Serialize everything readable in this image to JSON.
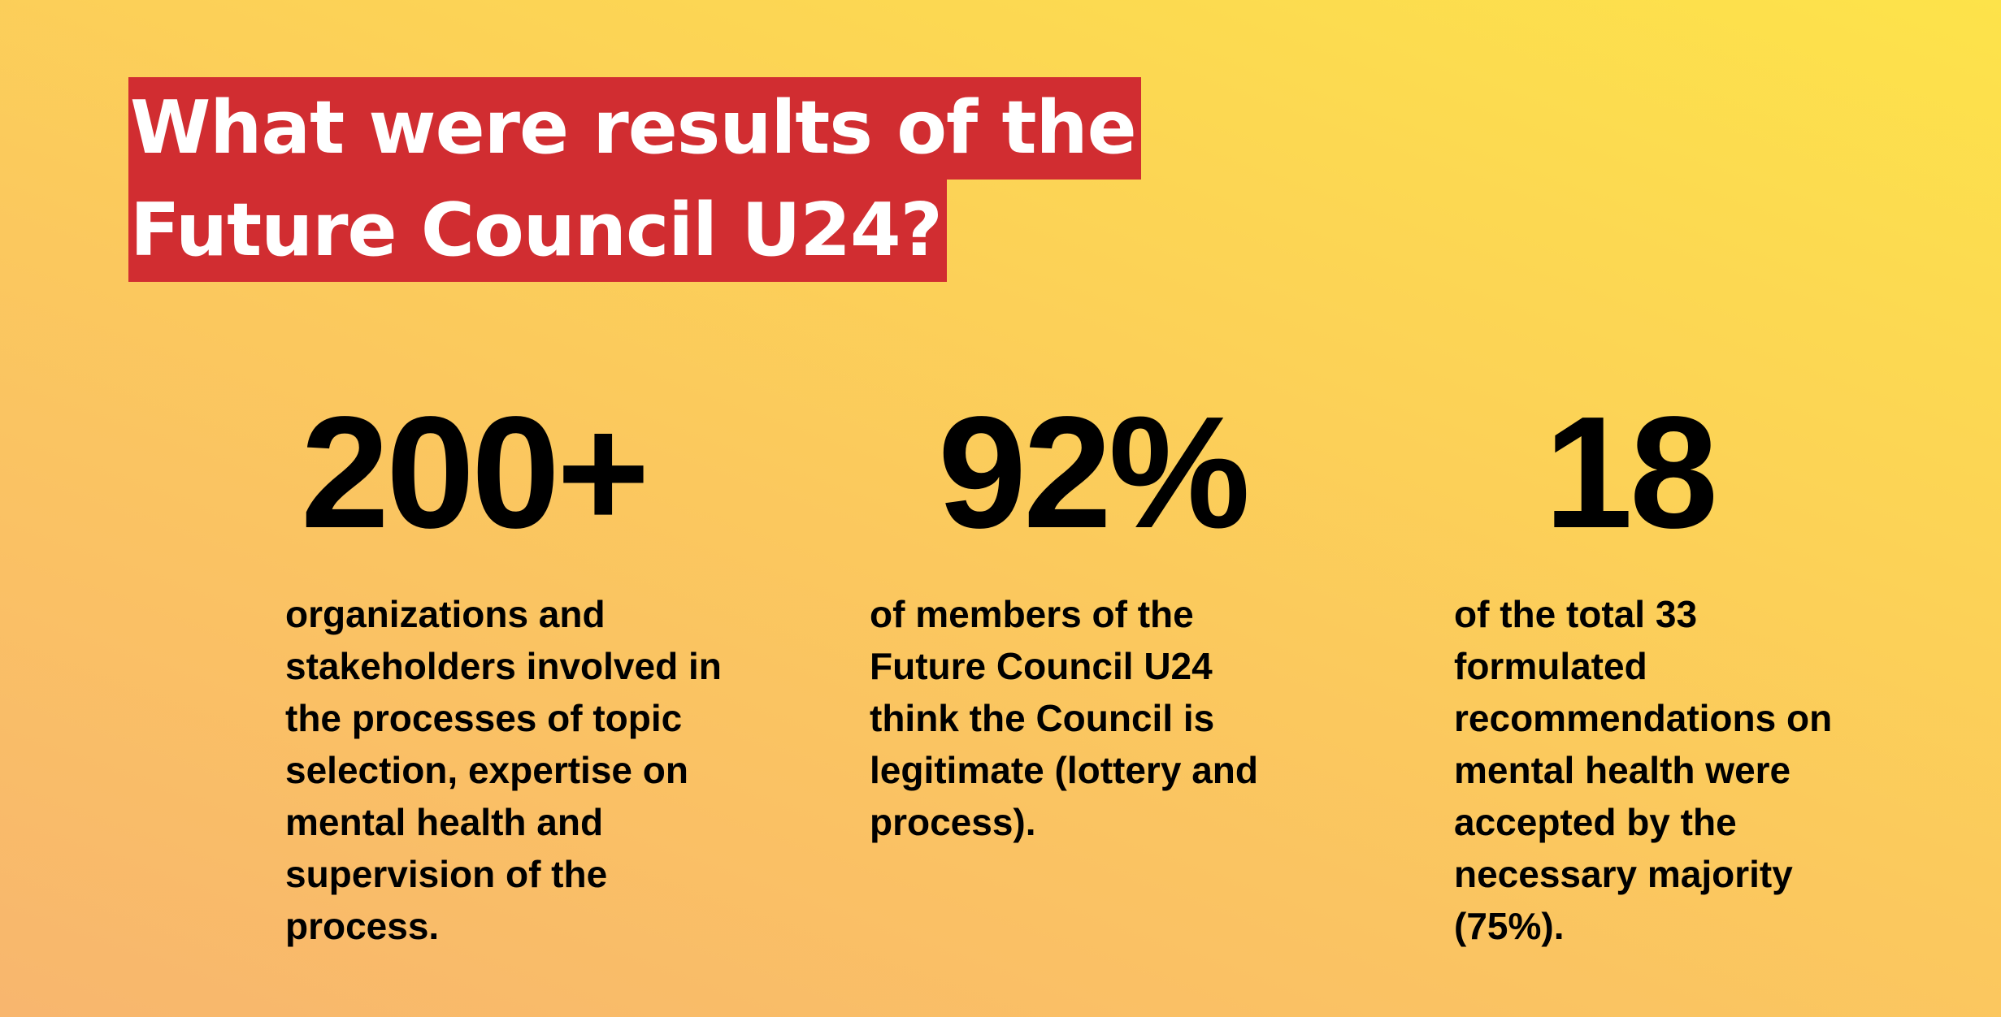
{
  "headline": {
    "line1": "What were results of the",
    "line2": "Future Council U24?"
  },
  "colors": {
    "headline_background": "#d12d31",
    "headline_text": "#ffffff",
    "background_gradient": [
      "#f8b66e",
      "#fbc85e",
      "#fde34a"
    ],
    "stat_text": "#000000"
  },
  "stats": [
    {
      "number": "200+",
      "text": "organizations and\nstakeholders involved in\nthe processes of topic\nselection, expertise on\nmental health and\nsupervision of the\nprocess."
    },
    {
      "number": "92%",
      "text": "of members of the\nFuture Council U24\nthink the Council is\nlegitimate (lottery and\nprocess)."
    },
    {
      "number": "18",
      "text": "of the total 33\nformulated\nrecommendations on\nmental health were\naccepted by the\nnecessary majority\n(75%)."
    }
  ]
}
